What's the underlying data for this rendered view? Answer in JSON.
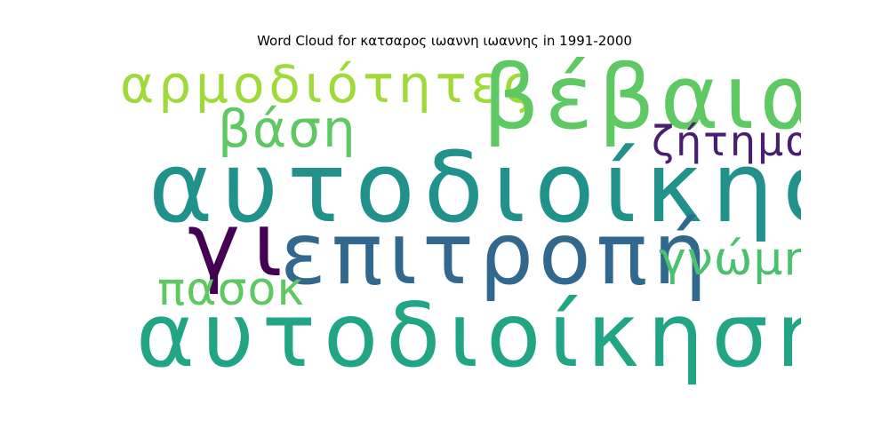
{
  "title": "Word Cloud for κατσαρος ιωαννη ιωαννης in 1991-2000",
  "words": [
    {
      "id": "armodiotites",
      "text": "αρμοδιότητες",
      "color": "#a0da39"
    },
    {
      "id": "vevaia",
      "text": "βέβαια",
      "color": "#5ec962"
    },
    {
      "id": "vasi",
      "text": "βάση",
      "color": "#5ec962"
    },
    {
      "id": "zitima",
      "text": "ζήτημα",
      "color": "#481f70"
    },
    {
      "id": "autodioikisi",
      "text": "αυτοδιοίκηση",
      "color": "#21918c"
    },
    {
      "id": "gi",
      "text": "γι",
      "color": "#440154"
    },
    {
      "id": "epitropi",
      "text": "επιτροπή",
      "color": "#31688e"
    },
    {
      "id": "gnomi",
      "text": "γνώμη",
      "color": "#4ac16d"
    },
    {
      "id": "pasok",
      "text": "πασοκ",
      "color": "#5ec962"
    },
    {
      "id": "autodioikisis",
      "text": "αυτοδιοίκησης",
      "color": "#21a585"
    }
  ]
}
